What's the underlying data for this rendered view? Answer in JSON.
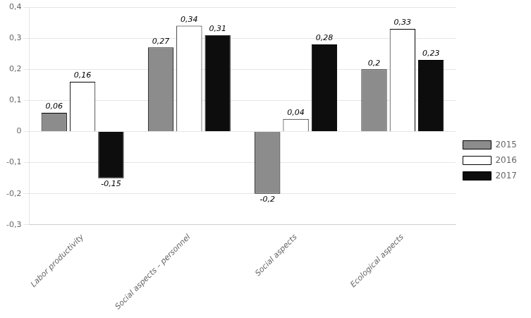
{
  "chart_data": {
    "type": "bar",
    "categories": [
      "Labor productivity",
      "Social aspects – personnel",
      "Social aspects",
      "Ecological aspects"
    ],
    "series": [
      {
        "name": "2015",
        "color": "#8c8c8c",
        "values": [
          0.06,
          0.27,
          -0.2,
          0.2
        ],
        "value_labels": [
          "0,06",
          "0,27",
          "-0,2",
          "0,2"
        ]
      },
      {
        "name": "2016",
        "color": "#ffffff",
        "values": [
          0.16,
          0.34,
          0.04,
          0.33
        ],
        "value_labels": [
          "0,16",
          "0,34",
          "0,04",
          "0,33"
        ]
      },
      {
        "name": "2017",
        "color": "#0d0d0d",
        "values": [
          -0.15,
          0.31,
          0.28,
          0.23
        ],
        "value_labels": [
          "-0,15",
          "0,31",
          "0,28",
          "0,23"
        ]
      }
    ],
    "ylim": [
      -0.3,
      0.4
    ],
    "yticks": [
      {
        "value": -0.3,
        "label": "-0,3"
      },
      {
        "value": -0.2,
        "label": "-0,2"
      },
      {
        "value": -0.1,
        "label": "-0,1"
      },
      0,
      {
        "value": 0.1,
        "label": "0,1"
      },
      {
        "value": 0.2,
        "label": "0,2"
      },
      {
        "value": 0.3,
        "label": "0,3"
      },
      {
        "value": 0.4,
        "label": "0,4"
      }
    ],
    "grid": true,
    "legend": "right",
    "data_labels": true
  }
}
